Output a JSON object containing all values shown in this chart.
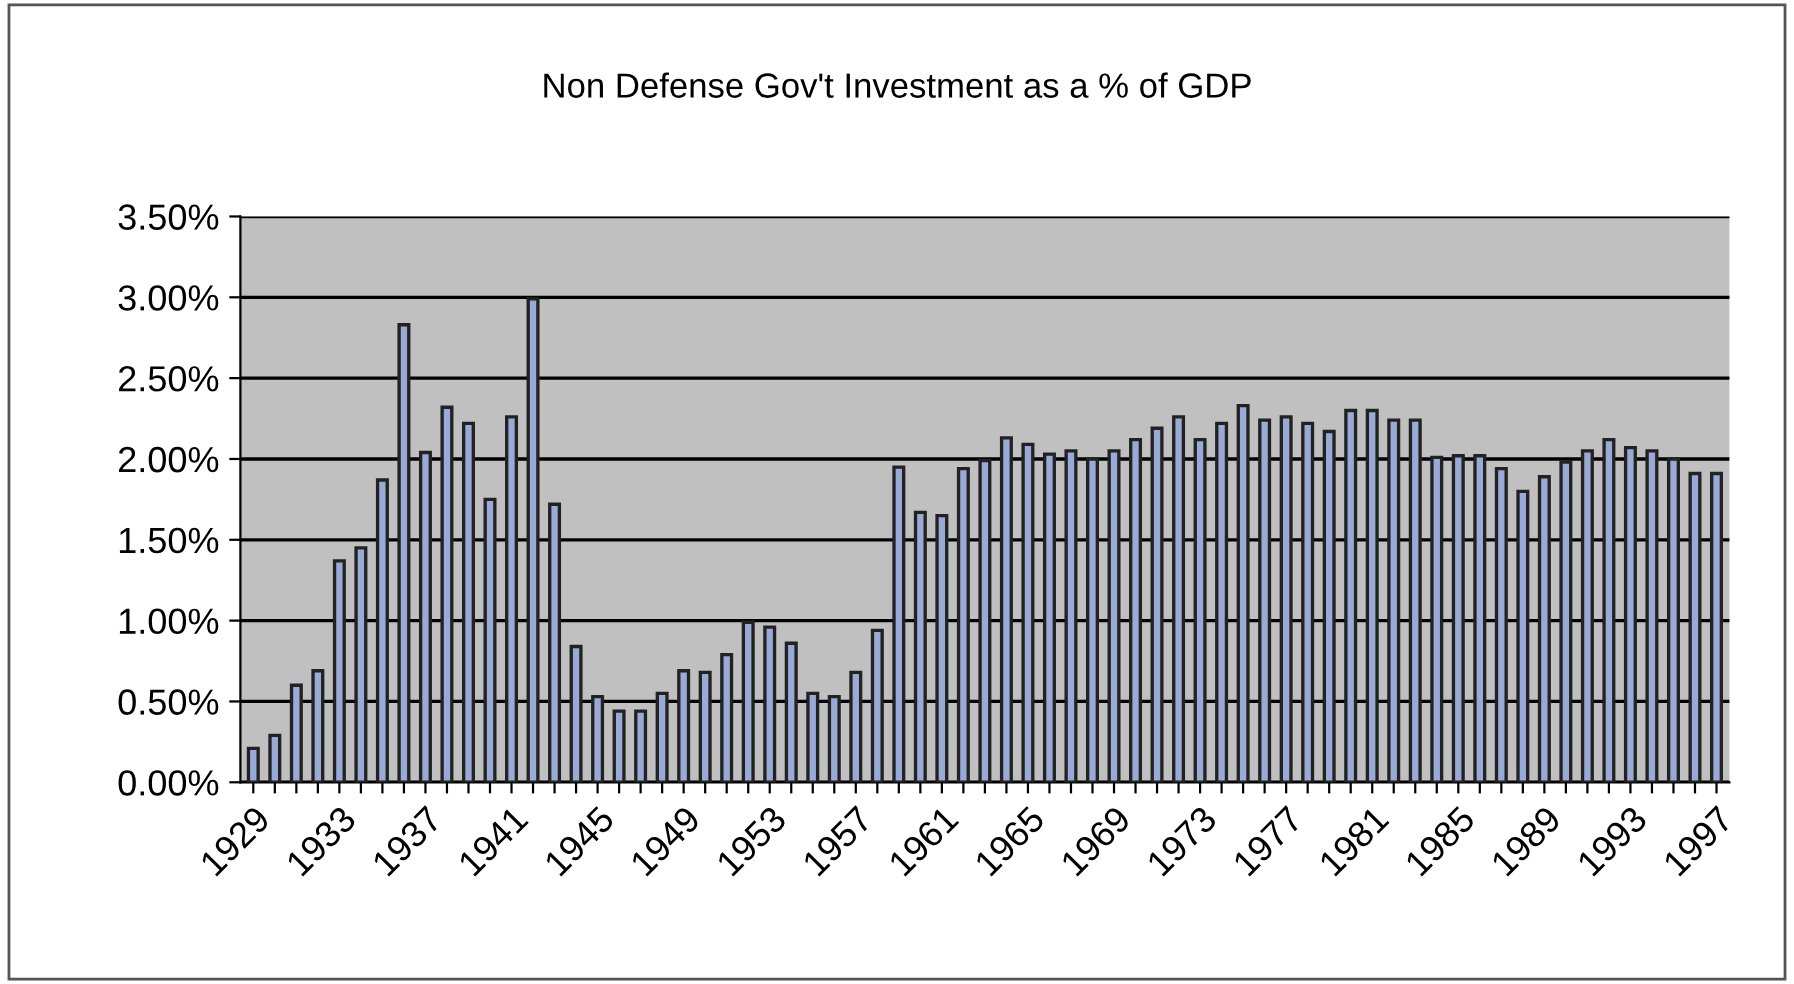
{
  "chart_data": {
    "type": "bar",
    "title": "Non Defense Gov't Investment as a % of GDP",
    "categories": [
      "1929",
      null,
      null,
      null,
      "1933",
      null,
      null,
      null,
      "1937",
      null,
      null,
      null,
      "1941",
      null,
      null,
      null,
      "1945",
      null,
      null,
      null,
      "1949",
      null,
      null,
      null,
      "1953",
      null,
      null,
      null,
      "1957",
      null,
      null,
      null,
      "1961",
      null,
      null,
      null,
      "1965",
      null,
      null,
      null,
      "1969",
      null,
      null,
      null,
      "1973",
      null,
      null,
      null,
      "1977",
      null,
      null,
      null,
      "1981",
      null,
      null,
      null,
      "1985",
      null,
      null,
      null,
      "1989",
      null,
      null,
      null,
      "1993",
      null,
      null,
      null,
      "1997"
    ],
    "values": [
      0.21,
      0.29,
      0.6,
      0.69,
      1.37,
      1.45,
      1.87,
      2.83,
      2.04,
      2.32,
      2.22,
      1.75,
      2.26,
      2.99,
      1.72,
      0.84,
      0.53,
      0.44,
      0.44,
      0.55,
      0.69,
      0.68,
      0.79,
      0.99,
      0.96,
      0.86,
      0.55,
      0.53,
      0.68,
      0.94,
      1.95,
      1.67,
      1.65,
      1.94,
      1.99,
      2.13,
      2.09,
      2.03,
      2.05,
      2.0,
      2.05,
      2.12,
      2.19,
      2.26,
      2.12,
      2.22,
      2.33,
      2.24,
      2.26,
      2.22,
      2.17,
      2.3,
      2.3,
      2.24,
      2.24,
      2.01,
      2.02,
      2.02,
      1.94,
      1.8,
      1.89,
      1.98,
      2.05,
      2.12,
      2.07,
      2.05,
      2.0,
      1.91,
      1.91
    ],
    "color": "#9aaad6",
    "ylim": [
      0,
      3.5
    ],
    "yticks": [
      {
        "value": 0,
        "label": "0.00%"
      },
      {
        "value": 0.5,
        "label": "0.50%"
      },
      {
        "value": 1,
        "label": "1.00%"
      },
      {
        "value": 1.5,
        "label": "1.50%"
      },
      {
        "value": 2,
        "label": "2.00%"
      },
      {
        "value": 2.5,
        "label": "2.50%"
      },
      {
        "value": 3,
        "label": "3.00%"
      },
      {
        "value": 3.5,
        "label": "3.50%"
      }
    ],
    "grid": "y",
    "legend": false
  }
}
